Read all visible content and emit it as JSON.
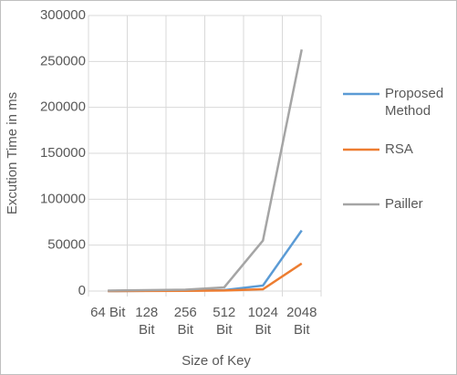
{
  "chart_data": {
    "type": "line",
    "categories": [
      "64 Bit",
      "128 Bit",
      "256 Bit",
      "512 Bit",
      "1024 Bit",
      "2048 Bit"
    ],
    "series": [
      {
        "name": "Proposed Method",
        "color": "#5b9bd5",
        "values": [
          0,
          200,
          500,
          1000,
          6000,
          66000
        ]
      },
      {
        "name": "RSA",
        "color": "#ed7d31",
        "values": [
          0,
          100,
          300,
          600,
          2000,
          30000
        ]
      },
      {
        "name": "Pailler",
        "color": "#a5a5a5",
        "values": [
          500,
          1000,
          1500,
          4000,
          55000,
          263000
        ]
      }
    ],
    "ylim": [
      0,
      300000
    ],
    "yticks": [
      0,
      50000,
      100000,
      150000,
      200000,
      250000,
      300000
    ],
    "y_label": "Excution Time in ms",
    "x_label": "Size of Key",
    "grid": true,
    "legend": "right"
  }
}
